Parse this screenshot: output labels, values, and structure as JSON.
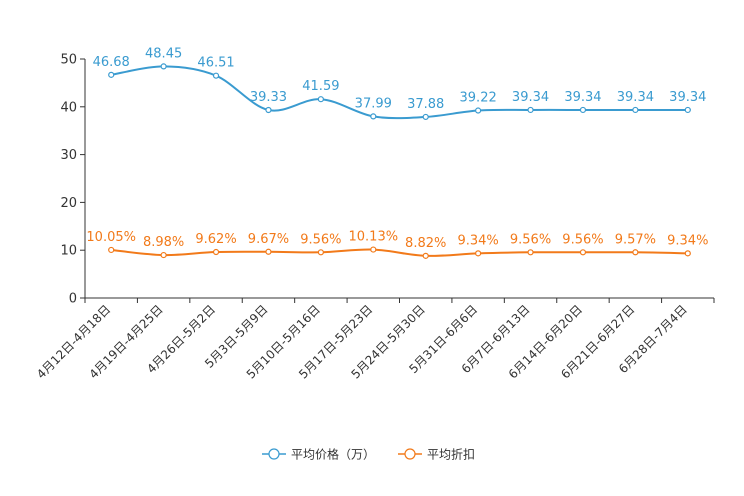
{
  "chart_data": {
    "type": "line",
    "categories": [
      "4月12日-4月18日",
      "4月19日-4月25日",
      "4月26日-5月2日",
      "5月3日-5月9日",
      "5月10日-5月16日",
      "5月17日-5月23日",
      "5月24日-5月30日",
      "5月31日-6月6日",
      "6月7日-6月13日",
      "6月14日-6月20日",
      "6月21日-6月27日",
      "6月28日-7月4日"
    ],
    "ylim": [
      0,
      50
    ],
    "yticks": [
      0,
      10,
      20,
      30,
      40,
      50
    ],
    "legend_position": "bottom-center",
    "series": [
      {
        "name": "平均价格（万）",
        "color": "#3a9bd0",
        "values": [
          46.68,
          48.45,
          46.51,
          39.33,
          41.59,
          37.99,
          37.88,
          39.22,
          39.34,
          39.34,
          39.34,
          39.34
        ],
        "labels": [
          "46.68",
          "48.45",
          "46.51",
          "39.33",
          "41.59",
          "37.99",
          "37.88",
          "39.22",
          "39.34",
          "39.34",
          "39.34",
          "39.34"
        ]
      },
      {
        "name": "平均折扣",
        "color": "#f27a1a",
        "values": [
          10.05,
          8.98,
          9.62,
          9.67,
          9.56,
          10.13,
          8.82,
          9.34,
          9.56,
          9.56,
          9.57,
          9.34
        ],
        "labels": [
          "10.05%",
          "8.98%",
          "9.62%",
          "9.67%",
          "9.56%",
          "10.13%",
          "8.82%",
          "9.34%",
          "9.56%",
          "9.56%",
          "9.57%",
          "9.34%"
        ]
      }
    ]
  }
}
